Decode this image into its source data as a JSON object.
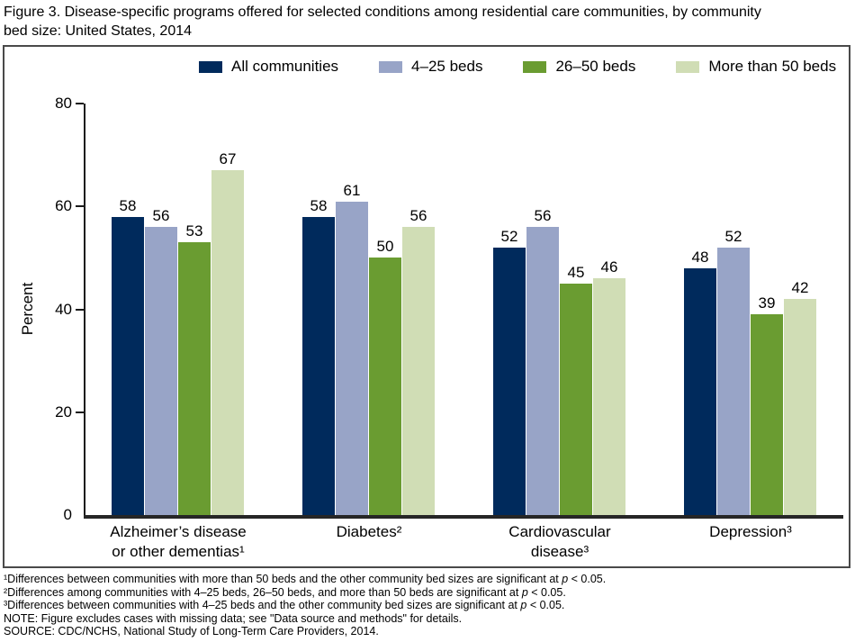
{
  "header": {
    "title_line1": "Figure 3. Disease-specific programs offered for selected conditions among residential care communities, by community",
    "title_line2": "bed size: United States, 2014"
  },
  "chart_data": {
    "type": "bar",
    "title": "Figure 3. Disease-specific programs offered for selected conditions among residential care communities, by community bed size: United States, 2014",
    "xlabel": "",
    "ylabel": "Percent",
    "ylim": [
      0,
      80
    ],
    "yticks": [
      0,
      20,
      40,
      60,
      80
    ],
    "grid": false,
    "legend_position": "top",
    "categories": [
      "Alzheimer’s disease or other dementias¹",
      "Diabetes²",
      "Cardiovascular disease³",
      "Depression³"
    ],
    "category_label_lines": [
      [
        "Alzheimer’s disease",
        "or other dementias¹"
      ],
      [
        "Diabetes²"
      ],
      [
        "Cardiovascular",
        "disease³"
      ],
      [
        "Depression³"
      ]
    ],
    "series": [
      {
        "name": "All communities",
        "color": "#002a5c",
        "values": [
          58,
          58,
          52,
          48
        ]
      },
      {
        "name": "4–25 beds",
        "color": "#98a4c7",
        "values": [
          56,
          61,
          56,
          52
        ]
      },
      {
        "name": "26–50 beds",
        "color": "#6a9c31",
        "values": [
          53,
          50,
          45,
          39
        ]
      },
      {
        "name": "More than 50 beds",
        "color": "#d0ddb5",
        "values": [
          67,
          56,
          46,
          42
        ]
      }
    ]
  },
  "footnotes": [
    "¹Differences between communities with more than 50 beds and the other community bed sizes are significant at p < 0.05.",
    "²Differences among communities with 4–25 beds, 26–50 beds, and more than 50 beds are significant at p < 0.05.",
    "³Differences between communities with 4–25 beds and the other community bed sizes are significant at p < 0.05.",
    "NOTE: Figure excludes cases with missing data; see \"Data source and methods\" for details.",
    "SOURCE: CDC/NCHS, National Study of Long-Term Care Providers, 2014."
  ]
}
